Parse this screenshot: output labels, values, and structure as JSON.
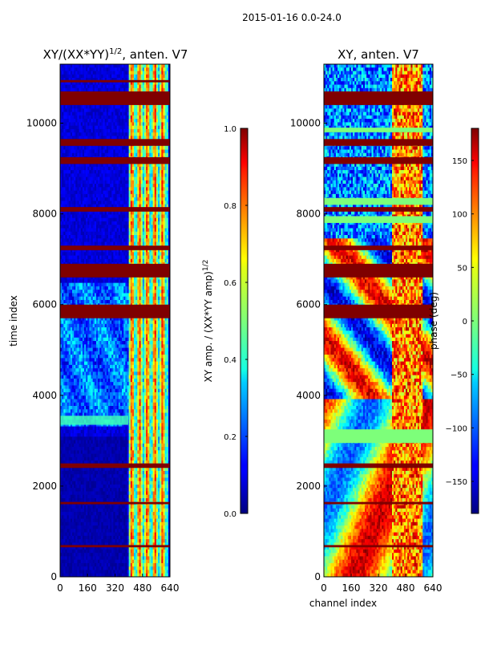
{
  "figure_title": "2015-01-16 0.0-24.0",
  "chart_data": [
    {
      "type": "heatmap",
      "title_base": "XY/(XX*YY)",
      "title_exp": "1/2",
      "title_suffix": ", anten. V7",
      "xlabel": "",
      "ylabel": "time index",
      "xlim": [
        0,
        640
      ],
      "ylim": [
        0,
        11300
      ],
      "xticks": [
        0,
        160,
        320,
        480,
        640
      ],
      "yticks": [
        0,
        2000,
        4000,
        6000,
        8000,
        10000
      ],
      "colorbar": {
        "label_base": "XY amp. / (XX*YY amp)",
        "label_exp": "1/2",
        "range": [
          0.0,
          1.0
        ],
        "ticks": [
          "0.0",
          "0.2",
          "0.4",
          "0.6",
          "0.8",
          "1.0"
        ],
        "colormap": "jet"
      }
    },
    {
      "type": "heatmap",
      "title": "XY, anten. V7",
      "xlabel": "channel index",
      "ylabel": "",
      "xlim": [
        0,
        640
      ],
      "ylim": [
        0,
        11300
      ],
      "xticks": [
        0,
        160,
        320,
        480,
        640
      ],
      "yticks": [
        0,
        2000,
        4000,
        6000,
        8000,
        10000
      ],
      "colorbar": {
        "label": "phase (deg)",
        "range": [
          -180,
          180
        ],
        "ticks": [
          "150",
          "100",
          "50",
          "0",
          "−50",
          "−100",
          "−150"
        ],
        "colormap": "jet"
      }
    }
  ],
  "tick_labels_left_x": [
    "0",
    "160",
    "320",
    "480",
    "640"
  ],
  "tick_labels_left_y": [
    "0",
    "2000",
    "4000",
    "6000",
    "8000",
    "10000"
  ],
  "tick_labels_right_x": [
    "0",
    "160",
    "320",
    "480",
    "640"
  ],
  "tick_labels_right_y": [
    "0",
    "2000",
    "4000",
    "6000",
    "8000",
    "10000"
  ],
  "colors": {
    "saturated": "#7f0000",
    "jet_low": "#00007f",
    "jet_high": "#7f0000"
  }
}
